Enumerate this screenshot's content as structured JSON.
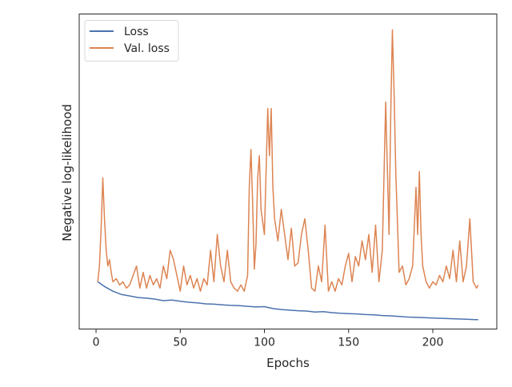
{
  "chart_data": {
    "type": "line",
    "xlabel": "Epochs",
    "ylabel": "Negative log-likelihood",
    "xlim": [
      -10,
      238
    ],
    "ylim": [
      0.0,
      1.0
    ],
    "x_ticks": [
      0,
      50,
      100,
      150,
      200
    ],
    "y_tick_labels_shown": false,
    "grid": false,
    "legend": "top-left",
    "series": [
      {
        "name": "Loss",
        "color": "#4c72b0",
        "x": [
          1,
          5,
          10,
          15,
          20,
          25,
          30,
          35,
          40,
          45,
          50,
          55,
          60,
          65,
          70,
          75,
          80,
          85,
          90,
          95,
          100,
          105,
          110,
          115,
          120,
          125,
          130,
          135,
          140,
          145,
          150,
          155,
          160,
          165,
          170,
          175,
          180,
          185,
          190,
          195,
          200,
          205,
          210,
          215,
          220,
          225,
          227
        ],
        "y": [
          0.15,
          0.135,
          0.12,
          0.11,
          0.105,
          0.1,
          0.098,
          0.095,
          0.09,
          0.092,
          0.088,
          0.085,
          0.083,
          0.08,
          0.079,
          0.077,
          0.075,
          0.074,
          0.072,
          0.07,
          0.071,
          0.065,
          0.062,
          0.06,
          0.058,
          0.057,
          0.054,
          0.055,
          0.052,
          0.05,
          0.049,
          0.048,
          0.046,
          0.045,
          0.043,
          0.042,
          0.04,
          0.038,
          0.037,
          0.036,
          0.035,
          0.034,
          0.033,
          0.032,
          0.031,
          0.03,
          0.03
        ]
      },
      {
        "name": "Val. loss",
        "color": "#dd8452",
        "x": [
          1,
          2,
          3,
          4,
          5,
          6,
          7,
          8,
          9,
          10,
          12,
          14,
          16,
          18,
          20,
          22,
          24,
          26,
          28,
          30,
          32,
          34,
          36,
          38,
          40,
          42,
          44,
          46,
          48,
          50,
          52,
          54,
          56,
          58,
          60,
          62,
          64,
          66,
          68,
          70,
          72,
          74,
          76,
          78,
          80,
          82,
          84,
          86,
          88,
          90,
          91,
          92,
          93,
          94,
          95,
          96,
          97,
          98,
          100,
          101,
          102,
          103,
          104,
          105,
          106,
          108,
          110,
          112,
          114,
          116,
          118,
          120,
          122,
          124,
          126,
          128,
          130,
          132,
          134,
          136,
          138,
          140,
          142,
          144,
          146,
          148,
          150,
          152,
          154,
          156,
          158,
          160,
          162,
          164,
          166,
          168,
          170,
          172,
          174,
          175,
          176,
          177,
          178,
          180,
          182,
          184,
          186,
          188,
          190,
          191,
          192,
          193,
          194,
          196,
          198,
          200,
          202,
          204,
          206,
          208,
          210,
          212,
          214,
          216,
          218,
          220,
          222,
          224,
          226,
          227
        ],
        "y": [
          0.15,
          0.2,
          0.32,
          0.48,
          0.35,
          0.25,
          0.2,
          0.22,
          0.18,
          0.15,
          0.16,
          0.14,
          0.15,
          0.13,
          0.14,
          0.17,
          0.2,
          0.13,
          0.18,
          0.13,
          0.17,
          0.14,
          0.16,
          0.13,
          0.2,
          0.16,
          0.25,
          0.22,
          0.17,
          0.12,
          0.2,
          0.14,
          0.17,
          0.13,
          0.16,
          0.12,
          0.16,
          0.14,
          0.25,
          0.15,
          0.3,
          0.2,
          0.15,
          0.25,
          0.15,
          0.13,
          0.12,
          0.14,
          0.12,
          0.17,
          0.45,
          0.57,
          0.4,
          0.19,
          0.27,
          0.48,
          0.55,
          0.38,
          0.3,
          0.5,
          0.7,
          0.55,
          0.7,
          0.45,
          0.35,
          0.28,
          0.38,
          0.3,
          0.22,
          0.32,
          0.2,
          0.21,
          0.3,
          0.35,
          0.25,
          0.13,
          0.12,
          0.2,
          0.15,
          0.33,
          0.12,
          0.15,
          0.12,
          0.16,
          0.14,
          0.2,
          0.24,
          0.15,
          0.23,
          0.2,
          0.28,
          0.22,
          0.3,
          0.18,
          0.33,
          0.15,
          0.25,
          0.72,
          0.3,
          0.68,
          0.95,
          0.75,
          0.5,
          0.18,
          0.2,
          0.14,
          0.16,
          0.2,
          0.45,
          0.3,
          0.5,
          0.3,
          0.2,
          0.15,
          0.13,
          0.15,
          0.14,
          0.17,
          0.15,
          0.2,
          0.16,
          0.25,
          0.15,
          0.28,
          0.15,
          0.2,
          0.35,
          0.15,
          0.13,
          0.14
        ]
      }
    ]
  }
}
